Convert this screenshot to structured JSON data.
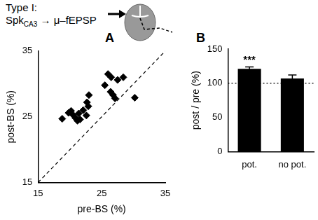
{
  "header": {
    "text": "Type I:",
    "pathway": {
      "main": "Spk",
      "subscript": "CA3",
      "rest": "→ μ–fEPSP"
    }
  },
  "chart_data": [
    {
      "type": "scatter",
      "title": "A",
      "x_label": "pre-BS (%)",
      "y_label": "post-BS (%)",
      "xlim": [
        15,
        35
      ],
      "xticks": [
        15,
        25,
        35
      ],
      "ylim": [
        15,
        35
      ],
      "yticks": [
        15,
        25,
        35
      ],
      "grid": false,
      "series": [
        {
          "type": "scatter",
          "marker": "diamond",
          "color": "#000000",
          "x": [
            18.8,
            19.8,
            20.2,
            20.5,
            20.9,
            21.2,
            21.6,
            21.4,
            22.1,
            22.6,
            22.9,
            22.7,
            23.0,
            25.5,
            26.0,
            26.4,
            26.8,
            27.1,
            27.5,
            28.4,
            30.2,
            26.5
          ],
          "values": [
            24.7,
            25.6,
            25.9,
            25.3,
            24.8,
            24.4,
            24.6,
            25.5,
            26.0,
            25.2,
            26.6,
            27.2,
            28.3,
            29.8,
            31.5,
            28.8,
            28.3,
            27.8,
            30.6,
            31.0,
            27.9,
            31.0
          ]
        },
        {
          "type": "line",
          "line_style": "dashed",
          "color": "#000000",
          "x": [
            15,
            35
          ],
          "values": [
            15,
            35
          ]
        }
      ]
    },
    {
      "type": "bar",
      "title": "B",
      "y_label": "post / pre (%)",
      "categories": [
        "pot.",
        "no pot."
      ],
      "values": [
        121,
        107
      ],
      "errors": [
        3,
        5
      ],
      "color": "#000000",
      "ylim": [
        0,
        150
      ],
      "yticks": [
        0,
        50,
        100,
        150
      ],
      "grid": false,
      "reference_line": {
        "value": 100,
        "line_style": "dotted"
      },
      "annotations": [
        {
          "text": "***",
          "category": "pot."
        }
      ]
    }
  ]
}
